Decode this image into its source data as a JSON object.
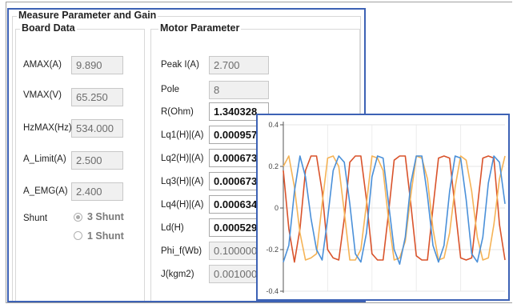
{
  "group_title": "Measure Parameter and Gain",
  "board": {
    "title": "Board Data",
    "fields": [
      {
        "label": "AMAX(A)",
        "value": "9.890"
      },
      {
        "label": "VMAX(V)",
        "value": "65.250"
      },
      {
        "label": "HzMAX(Hz)",
        "value": "534.000"
      },
      {
        "label": "A_Limit(A)",
        "value": "2.500"
      },
      {
        "label": "A_EMG(A)",
        "value": "2.400"
      }
    ],
    "shunt": {
      "label": "Shunt",
      "options": [
        {
          "label": "3 Shunt",
          "selected": true
        },
        {
          "label": "1 Shunt",
          "selected": false
        }
      ]
    }
  },
  "motor": {
    "title": "Motor Parameter",
    "fields": [
      {
        "label": "Peak I(A)",
        "value": "2.700",
        "editable": false
      },
      {
        "label": "Pole",
        "value": "8",
        "editable": false
      },
      {
        "label": "R(Ohm)",
        "value": "1.340328",
        "editable": true
      },
      {
        "label": "Lq1(H)|(A)",
        "value": "0.000957",
        "editable": true
      },
      {
        "label": "Lq2(H)|(A)",
        "value": "0.000673",
        "editable": true
      },
      {
        "label": "Lq3(H)|(A)",
        "value": "0.000673",
        "editable": true
      },
      {
        "label": "Lq4(H)|(A)",
        "value": "0.000634",
        "editable": true
      },
      {
        "label": "Ld(H)",
        "value": "0.000529",
        "editable": true
      },
      {
        "label": "Phi_f(Wb)",
        "value": "0.100000",
        "editable": false
      },
      {
        "label": "J(kgm2)",
        "value": "0.001000",
        "editable": false
      }
    ]
  },
  "chart_data": {
    "type": "line",
    "title": "",
    "xlabel": "",
    "ylabel": "",
    "ylim": [
      -0.4,
      0.4
    ],
    "yticks": [
      "0.4",
      "0.2",
      "0",
      "-0.2",
      "-0.4"
    ],
    "grid": true,
    "legend": "none",
    "x": [
      0,
      1,
      2,
      3,
      4,
      5,
      6,
      7,
      8,
      9,
      10,
      11,
      12,
      13,
      14,
      15,
      16,
      17,
      18,
      19,
      20,
      21,
      22,
      23,
      24,
      25,
      26,
      27,
      28,
      29,
      30,
      31,
      32,
      33,
      34,
      35,
      36,
      37,
      38,
      39,
      40
    ],
    "series": [
      {
        "color": "#d9532b",
        "values": [
          0.18,
          -0.1,
          -0.26,
          -0.1,
          0.18,
          0.25,
          0.25,
          0.08,
          -0.2,
          -0.24,
          -0.25,
          -0.05,
          0.22,
          0.25,
          0.25,
          0.04,
          -0.22,
          -0.25,
          -0.25,
          -0.02,
          0.23,
          0.25,
          0.25,
          0.02,
          -0.23,
          -0.25,
          -0.25,
          0.0,
          0.24,
          0.25,
          0.24,
          0.0,
          -0.24,
          -0.25,
          -0.24,
          0.0,
          0.24,
          0.25,
          0.24,
          -0.08,
          -0.25
        ]
      },
      {
        "color": "#f5b356",
        "values": [
          0.2,
          0.25,
          0.1,
          -0.12,
          -0.25,
          -0.24,
          -0.22,
          0.02,
          0.24,
          0.25,
          0.2,
          -0.02,
          -0.25,
          -0.25,
          -0.2,
          0.02,
          0.25,
          0.24,
          0.18,
          -0.06,
          -0.25,
          -0.24,
          -0.16,
          0.06,
          0.25,
          0.24,
          0.14,
          -0.1,
          -0.25,
          -0.24,
          -0.12,
          0.1,
          0.25,
          0.23,
          0.08,
          -0.14,
          -0.25,
          -0.24,
          -0.08,
          0.14,
          0.25
        ]
      },
      {
        "color": "#4a90d9",
        "values": [
          -0.26,
          -0.18,
          0.08,
          0.25,
          0.15,
          -0.05,
          -0.2,
          -0.25,
          -0.05,
          0.18,
          0.25,
          0.22,
          0.02,
          -0.22,
          -0.26,
          -0.12,
          0.15,
          0.25,
          0.24,
          0.02,
          -0.2,
          -0.27,
          -0.14,
          0.12,
          0.25,
          0.25,
          0.06,
          -0.18,
          -0.26,
          -0.18,
          0.08,
          0.25,
          0.24,
          0.04,
          -0.22,
          -0.26,
          -0.14,
          0.12,
          0.25,
          0.22,
          0.02
        ]
      }
    ]
  }
}
